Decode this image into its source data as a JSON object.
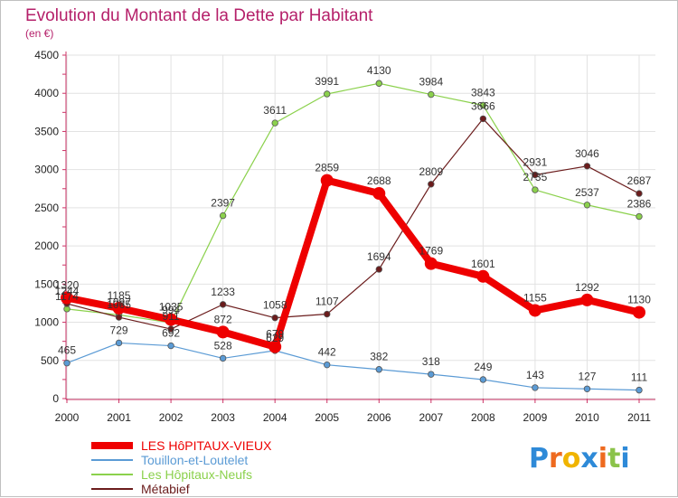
{
  "chart_data": {
    "type": "line",
    "title": "Evolution du Montant de la Dette par Habitant",
    "subtitle": "(en €)",
    "xlabel": "",
    "ylabel": "",
    "ylim": [
      0,
      4500
    ],
    "yticks": [
      0,
      500,
      1000,
      1500,
      2000,
      2500,
      3000,
      3500,
      4000,
      4500
    ],
    "categories": [
      "2000",
      "2001",
      "2002",
      "2003",
      "2004",
      "2005",
      "2006",
      "2007",
      "2008",
      "2009",
      "2010",
      "2011"
    ],
    "grid": true,
    "legend_position": "bottom-left",
    "series": [
      {
        "name": "LES HôPITAUX-VIEUX",
        "color": "#ee0000",
        "emphasis": true,
        "values": [
          1320,
          1185,
          1035,
          872,
          679,
          2859,
          2688,
          1769,
          1601,
          1155,
          1292,
          1130
        ]
      },
      {
        "name": "Touillon-et-Loutelet",
        "color": "#5b9bd5",
        "values": [
          465,
          729,
          692,
          528,
          629,
          442,
          382,
          318,
          249,
          143,
          127,
          111
        ]
      },
      {
        "name": "Les Hôpitaux-Neufs",
        "color": "#8bd14c",
        "values": [
          1174,
          1097,
          994,
          2397,
          3611,
          3991,
          4130,
          3984,
          3843,
          2735,
          2537,
          2386
        ]
      },
      {
        "name": "Métabief",
        "color": "#6b1c1c",
        "values": [
          1244,
          1065,
          911,
          1233,
          1058,
          1107,
          1694,
          2809,
          3666,
          2931,
          3046,
          2687
        ]
      }
    ]
  },
  "brand": {
    "letters": [
      "P",
      "r",
      "o",
      "x",
      "i",
      "t",
      "i"
    ],
    "colors": [
      "#2e8ad8",
      "#ee6a1f",
      "#f0b400",
      "#2e8ad8",
      "#ee6a1f",
      "#8bc34a",
      "#2e8ad8"
    ]
  }
}
